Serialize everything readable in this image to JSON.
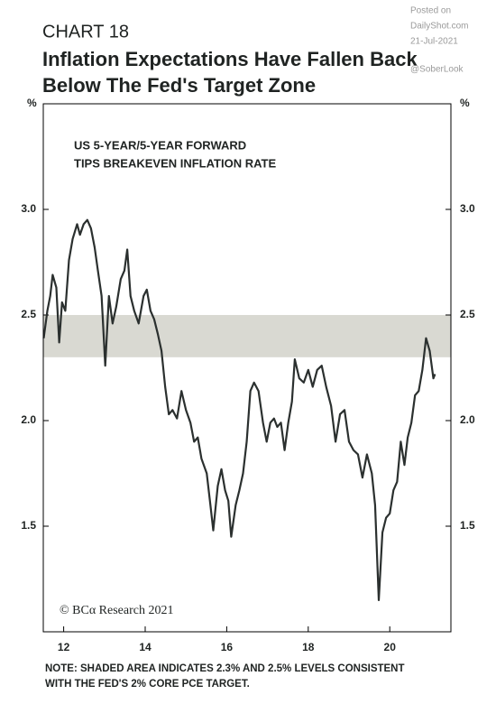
{
  "chart_data": {
    "type": "line",
    "label": "CHART 18",
    "title": "Inflation Expectations Have Fallen Back",
    "title_line2": "Below The Fed's Target Zone",
    "watermark": [
      "Posted on",
      "DailyShot.com",
      "21-Jul-2021",
      "@SoberLook"
    ],
    "y_unit_left": "%",
    "y_unit_right": "%",
    "annotation": [
      "US 5-YEAR/5-YEAR FORWARD",
      "TIPS BREAKEVEN INFLATION RATE"
    ],
    "source": "© BCα Research 2021",
    "note": [
      "NOTE: SHADED AREA INDICATES 2.3% AND 2.5% LEVELS CONSISTENT",
      "WITH THE FED'S 2% CORE PCE TARGET."
    ],
    "color": "#2b302f",
    "band": {
      "ymin": 2.3,
      "ymax": 2.5,
      "color": "#d9d9d2"
    },
    "xlim": [
      2011.5,
      2021.5
    ],
    "ylim": [
      1.0,
      3.5
    ],
    "xticks": [
      {
        "value": 2012,
        "label": "12"
      },
      {
        "value": 2014,
        "label": "14"
      },
      {
        "value": 2016,
        "label": "16"
      },
      {
        "value": 2018,
        "label": "18"
      },
      {
        "value": 2020,
        "label": "20"
      }
    ],
    "yticks": [
      1.5,
      {
        "value": 2,
        "label": "2.0"
      },
      2.5,
      {
        "value": 3,
        "label": "3.0"
      }
    ],
    "x": [
      2011.51,
      2011.6,
      2011.67,
      2011.73,
      2011.82,
      2011.89,
      2011.96,
      2012.04,
      2012.13,
      2012.22,
      2012.33,
      2012.4,
      2012.49,
      2012.58,
      2012.67,
      2012.76,
      2012.84,
      2012.93,
      2013.02,
      2013.11,
      2013.2,
      2013.29,
      2013.4,
      2013.49,
      2013.56,
      2013.64,
      2013.73,
      2013.84,
      2013.96,
      2014.04,
      2014.13,
      2014.22,
      2014.31,
      2014.4,
      2014.49,
      2014.58,
      2014.67,
      2014.78,
      2014.89,
      2015.0,
      2015.11,
      2015.2,
      2015.29,
      2015.38,
      2015.51,
      2015.6,
      2015.67,
      2015.78,
      2015.87,
      2015.96,
      2016.04,
      2016.11,
      2016.22,
      2016.31,
      2016.4,
      2016.49,
      2016.58,
      2016.67,
      2016.78,
      2016.89,
      2016.98,
      2017.07,
      2017.16,
      2017.24,
      2017.33,
      2017.42,
      2017.51,
      2017.6,
      2017.67,
      2017.78,
      2017.89,
      2018.0,
      2018.11,
      2018.22,
      2018.33,
      2018.44,
      2018.56,
      2018.67,
      2018.78,
      2018.89,
      2019.0,
      2019.11,
      2019.22,
      2019.33,
      2019.44,
      2019.56,
      2019.64,
      2019.73,
      2019.82,
      2019.91,
      2020.0,
      2020.09,
      2020.18,
      2020.27,
      2020.36,
      2020.44,
      2020.53,
      2020.62,
      2020.71,
      2020.8,
      2020.89,
      2020.98,
      2021.07,
      2021.11
    ],
    "values": [
      2.39,
      2.52,
      2.59,
      2.69,
      2.63,
      2.37,
      2.56,
      2.52,
      2.76,
      2.86,
      2.93,
      2.88,
      2.93,
      2.95,
      2.91,
      2.82,
      2.71,
      2.59,
      2.26,
      2.59,
      2.46,
      2.54,
      2.67,
      2.71,
      2.81,
      2.59,
      2.52,
      2.46,
      2.59,
      2.62,
      2.52,
      2.48,
      2.41,
      2.33,
      2.16,
      2.03,
      2.05,
      2.01,
      2.14,
      2.05,
      1.99,
      1.9,
      1.92,
      1.82,
      1.75,
      1.6,
      1.48,
      1.69,
      1.77,
      1.67,
      1.62,
      1.45,
      1.6,
      1.67,
      1.75,
      1.9,
      2.14,
      2.18,
      2.14,
      1.99,
      1.9,
      1.99,
      2.01,
      1.97,
      1.99,
      1.86,
      1.99,
      2.09,
      2.29,
      2.2,
      2.18,
      2.24,
      2.16,
      2.24,
      2.26,
      2.16,
      2.07,
      1.9,
      2.03,
      2.05,
      1.9,
      1.86,
      1.84,
      1.73,
      1.84,
      1.75,
      1.6,
      1.15,
      1.47,
      1.54,
      1.56,
      1.67,
      1.71,
      1.9,
      1.79,
      1.92,
      1.99,
      2.12,
      2.14,
      2.24,
      2.39,
      2.33,
      2.2,
      2.22
    ]
  }
}
